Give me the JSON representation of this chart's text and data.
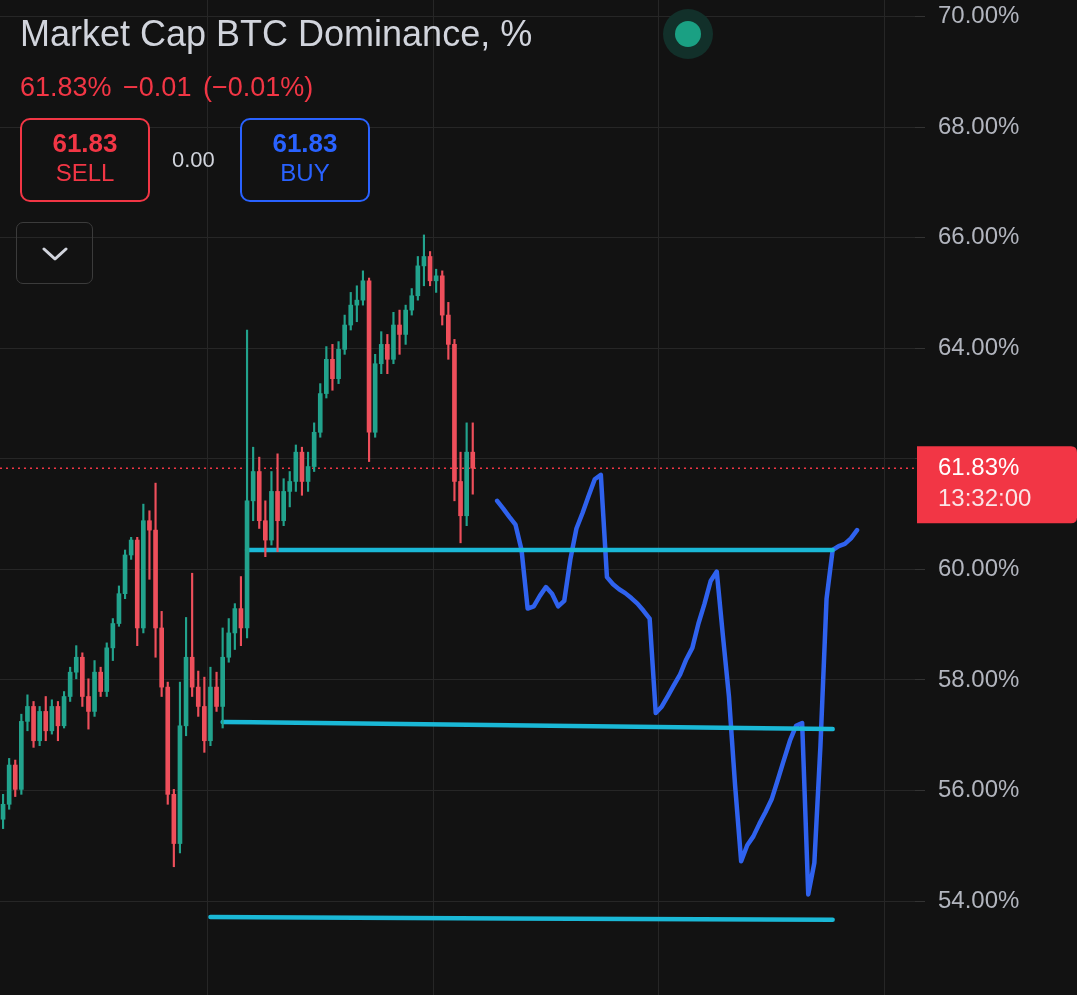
{
  "chart_data": {
    "type": "candlestick",
    "title": "Market Cap BTC Dominance, %",
    "subtitle": "61.83% −0.01 (−0.01%)",
    "categories": [
      null,
      null,
      null,
      null,
      null,
      null,
      null,
      null,
      null,
      null,
      null,
      null,
      null,
      null,
      null,
      null,
      null,
      null,
      null,
      null,
      null,
      null,
      null,
      null,
      null,
      null,
      null,
      null,
      null,
      null,
      null,
      null,
      null,
      null,
      null,
      null,
      null,
      null,
      null,
      null,
      null,
      null,
      null,
      null,
      null,
      null,
      null,
      null,
      null,
      null,
      null,
      null,
      null,
      null,
      null,
      null,
      null,
      null,
      null,
      null,
      null,
      null,
      null,
      null,
      null,
      null,
      null,
      null,
      null,
      null,
      null,
      null,
      null,
      null,
      null,
      null,
      null,
      null,
      null,
      null,
      null,
      null,
      null,
      null,
      null,
      null,
      null,
      null,
      null,
      null,
      null,
      null,
      null,
      null,
      null,
      null,
      null,
      null,
      null,
      null,
      null,
      null,
      null,
      null,
      null,
      null,
      null,
      null,
      null,
      null,
      null,
      null,
      null,
      null,
      null,
      null,
      null,
      null,
      null,
      null,
      null,
      null,
      null,
      null,
      null,
      null,
      null,
      null,
      null,
      null,
      null,
      null,
      null,
      null,
      null,
      null,
      null,
      null,
      null,
      null,
      null,
      null,
      null,
      null,
      null,
      null,
      null,
      null,
      null,
      null
    ],
    "series": [
      {
        "ohlc": [
          [
            55.48,
            55.93,
            55.31,
            55.75
          ],
          [
            55.75,
            56.58,
            55.66,
            56.46
          ],
          [
            56.46,
            56.55,
            55.89,
            56.02
          ],
          [
            56.02,
            57.38,
            55.93,
            57.25
          ],
          [
            57.25,
            57.73,
            57.08,
            57.52
          ],
          [
            57.52,
            57.61,
            56.78,
            56.9
          ],
          [
            56.9,
            57.52,
            56.81,
            57.43
          ],
          [
            57.43,
            57.7,
            56.9,
            57.08
          ],
          [
            57.08,
            57.64,
            57.02,
            57.52
          ],
          [
            57.52,
            57.61,
            56.9,
            57.17
          ],
          [
            57.17,
            57.79,
            57.13,
            57.7
          ],
          [
            57.7,
            58.23,
            57.61,
            58.14
          ],
          [
            58.14,
            58.62,
            58.02,
            58.41
          ],
          [
            58.41,
            58.49,
            57.52,
            57.7
          ],
          [
            57.7,
            58.02,
            57.11,
            57.43
          ],
          [
            57.43,
            58.35,
            57.34,
            58.14
          ],
          [
            58.14,
            58.23,
            57.7,
            57.79
          ],
          [
            57.79,
            58.67,
            57.7,
            58.58
          ],
          [
            58.58,
            59.11,
            58.35,
            59.02
          ],
          [
            59.02,
            59.7,
            58.97,
            59.56
          ],
          [
            59.56,
            60.35,
            59.47,
            60.26
          ],
          [
            60.26,
            60.58,
            60.18,
            60.53
          ],
          [
            60.53,
            60.58,
            58.62,
            58.94
          ],
          [
            58.94,
            61.18,
            58.85,
            60.88
          ],
          [
            60.88,
            61.06,
            59.82,
            60.71
          ],
          [
            60.71,
            61.56,
            58.41,
            58.94
          ],
          [
            58.94,
            59.24,
            57.7,
            57.87
          ],
          [
            57.87,
            57.96,
            55.75,
            55.93
          ],
          [
            55.93,
            56.02,
            54.62,
            55.04
          ],
          [
            55.04,
            57.96,
            54.87,
            57.17
          ],
          [
            57.17,
            59.13,
            56.99,
            58.41
          ],
          [
            58.41,
            59.93,
            57.7,
            57.87
          ],
          [
            57.87,
            58.16,
            57.34,
            57.52
          ],
          [
            57.52,
            58.05,
            56.69,
            56.9
          ],
          [
            56.9,
            58.23,
            56.81,
            57.87
          ],
          [
            57.87,
            58.14,
            57.43,
            57.52
          ],
          [
            57.52,
            58.94,
            57.13,
            58.41
          ],
          [
            58.41,
            59.11,
            58.32,
            58.85
          ],
          [
            58.85,
            59.38,
            58.55,
            59.29
          ],
          [
            59.29,
            59.87,
            58.62,
            58.94
          ],
          [
            58.94,
            64.33,
            58.76,
            61.24
          ],
          [
            61.24,
            62.21,
            60.88,
            61.77
          ],
          [
            61.77,
            62.03,
            60.74,
            60.88
          ],
          [
            60.88,
            61.24,
            60.23,
            60.53
          ],
          [
            60.53,
            61.77,
            60.44,
            61.41
          ],
          [
            61.41,
            62.09,
            60.32,
            60.88
          ],
          [
            60.88,
            61.64,
            60.79,
            61.41
          ],
          [
            61.41,
            61.77,
            61.13,
            61.59
          ],
          [
            61.59,
            62.25,
            61.41,
            62.12
          ],
          [
            62.12,
            62.21,
            61.34,
            61.59
          ],
          [
            61.59,
            62.12,
            61.41,
            61.86
          ],
          [
            61.86,
            62.65,
            61.77,
            62.48
          ],
          [
            62.48,
            63.36,
            62.39,
            63.18
          ],
          [
            63.18,
            64.03,
            63.1,
            63.8
          ],
          [
            63.8,
            64.07,
            63.24,
            63.45
          ],
          [
            63.45,
            64.12,
            63.36,
            63.98
          ],
          [
            63.98,
            64.6,
            63.89,
            64.42
          ],
          [
            64.42,
            65.01,
            64.33,
            64.78
          ],
          [
            64.78,
            65.13,
            64.48,
            64.87
          ],
          [
            64.87,
            65.4,
            64.78,
            65.22
          ],
          [
            65.22,
            65.27,
            61.95,
            62.48
          ],
          [
            62.48,
            63.89,
            62.39,
            63.72
          ],
          [
            63.72,
            64.3,
            63.54,
            64.07
          ],
          [
            64.07,
            64.25,
            63.54,
            63.8
          ],
          [
            63.8,
            64.65,
            63.72,
            64.42
          ],
          [
            64.42,
            64.69,
            63.89,
            64.25
          ],
          [
            64.25,
            64.78,
            64.07,
            64.69
          ],
          [
            64.69,
            65.08,
            64.6,
            64.95
          ],
          [
            64.95,
            65.66,
            64.87,
            65.49
          ],
          [
            65.49,
            66.05,
            65.13,
            65.66
          ],
          [
            65.66,
            65.75,
            65.13,
            65.22
          ],
          [
            65.22,
            65.43,
            65.01,
            65.31
          ],
          [
            65.31,
            65.4,
            64.42,
            64.6
          ],
          [
            64.6,
            64.83,
            63.8,
            64.07
          ],
          [
            64.07,
            64.16,
            61.24,
            61.59
          ],
          [
            61.59,
            62.12,
            60.48,
            60.97
          ],
          [
            60.97,
            62.65,
            60.79,
            62.12
          ],
          [
            62.12,
            62.65,
            61.36,
            61.83
          ],
          null,
          null,
          null,
          null,
          null,
          null,
          null,
          null,
          null,
          null,
          null,
          null,
          null,
          null,
          null,
          null,
          null,
          null,
          null,
          null,
          null,
          null,
          null,
          null,
          null,
          null,
          null,
          null,
          null,
          null,
          null,
          null,
          null,
          null,
          null,
          null,
          null,
          null,
          null,
          null,
          null,
          null,
          null,
          null,
          null,
          null,
          null,
          null,
          null,
          null,
          null,
          null,
          null,
          null,
          null,
          null,
          null,
          null,
          null,
          null,
          null,
          null,
          null,
          null,
          null,
          null,
          null,
          null,
          null,
          null,
          null,
          null
        ],
        "colors": [
          "#22a38d",
          "#22a38d",
          "#ee4f5b",
          "#22a38d",
          "#22a38d",
          "#ee4f5b",
          "#22a38d",
          "#ee4f5b",
          "#22a38d",
          "#ee4f5b",
          "#22a38d",
          "#22a38d",
          "#22a38d",
          "#ee4f5b",
          "#ee4f5b",
          "#22a38d",
          "#ee4f5b",
          "#22a38d",
          "#22a38d",
          "#22a38d",
          "#22a38d",
          "#22a38d",
          "#ee4f5b",
          "#22a38d",
          "#ee4f5b",
          "#ee4f5b",
          "#ee4f5b",
          "#ee4f5b",
          "#ee4f5b",
          "#22a38d",
          "#22a38d",
          "#ee4f5b",
          "#ee4f5b",
          "#ee4f5b",
          "#22a38d",
          "#ee4f5b",
          "#22a38d",
          "#22a38d",
          "#22a38d",
          "#ee4f5b",
          "#22a38d",
          "#22a38d",
          "#ee4f5b",
          "#ee4f5b",
          "#22a38d",
          "#ee4f5b",
          "#22a38d",
          "#22a38d",
          "#22a38d",
          "#ee4f5b",
          "#22a38d",
          "#22a38d",
          "#22a38d",
          "#22a38d",
          "#ee4f5b",
          "#22a38d",
          "#22a38d",
          "#22a38d",
          "#22a38d",
          "#22a38d",
          "#ee4f5b",
          "#22a38d",
          "#22a38d",
          "#ee4f5b",
          "#22a38d",
          "#ee4f5b",
          "#22a38d",
          "#22a38d",
          "#22a38d",
          "#22a38d",
          "#ee4f5b",
          "#22a38d",
          "#ee4f5b",
          "#ee4f5b",
          "#ee4f5b",
          "#ee4f5b",
          "#22a38d",
          "#ee4f5b",
          null,
          null,
          null,
          null,
          null,
          null,
          null,
          null,
          null,
          null,
          null,
          null,
          null,
          null,
          null,
          null,
          null,
          null,
          null,
          null,
          null,
          null,
          null,
          null,
          null,
          null,
          null,
          null,
          null,
          null,
          null,
          null,
          null,
          null,
          null,
          null,
          null,
          null,
          null,
          null,
          null,
          null,
          null,
          null,
          null,
          null,
          null,
          null,
          null,
          null,
          null,
          null,
          null,
          null,
          null,
          null,
          null,
          null,
          null,
          null,
          null,
          null,
          null,
          null,
          null,
          null,
          null,
          null,
          null,
          null,
          null,
          null
        ]
      },
      {
        "type": "line",
        "color": "#1ab8d6",
        "values": [
          null,
          null,
          null,
          null,
          null,
          null,
          null,
          null,
          null,
          null,
          null,
          null,
          null,
          null,
          null,
          null,
          null,
          null,
          null,
          null,
          null,
          null,
          null,
          null,
          null,
          null,
          null,
          null,
          null,
          null,
          null,
          null,
          null,
          null,
          null,
          null,
          null,
          null,
          null,
          null,
          60.35,
          null,
          null,
          null,
          null,
          null,
          null,
          null,
          null,
          null,
          null,
          null,
          null,
          null,
          null,
          null,
          null,
          null,
          null,
          null,
          null,
          null,
          null,
          null,
          null,
          null,
          null,
          null,
          null,
          null,
          null,
          null,
          null,
          null,
          null,
          null,
          null,
          null,
          null,
          null,
          null,
          null,
          null,
          null,
          null,
          null,
          null,
          null,
          null,
          null,
          null,
          null,
          null,
          null,
          null,
          null,
          null,
          null,
          null,
          null,
          null,
          null,
          null,
          null,
          null,
          null,
          null,
          null,
          null,
          null,
          null,
          null,
          null,
          null,
          null,
          null,
          null,
          null,
          null,
          null,
          null,
          null,
          null,
          null,
          null,
          null,
          null,
          null,
          null,
          null,
          null,
          null,
          null,
          null,
          null,
          null,
          60.35,
          null,
          null,
          null,
          null,
          null,
          null,
          null,
          null,
          null,
          null,
          null,
          null,
          null
        ]
      },
      {
        "type": "line",
        "color": "#1ab8d6",
        "values": [
          null,
          null,
          null,
          null,
          null,
          null,
          null,
          null,
          null,
          null,
          null,
          null,
          null,
          null,
          null,
          null,
          null,
          null,
          null,
          null,
          null,
          null,
          null,
          null,
          null,
          null,
          null,
          null,
          null,
          null,
          null,
          null,
          null,
          null,
          null,
          null,
          57.24,
          null,
          null,
          null,
          null,
          null,
          null,
          null,
          null,
          null,
          null,
          null,
          null,
          null,
          null,
          null,
          null,
          null,
          null,
          null,
          null,
          null,
          null,
          null,
          null,
          null,
          null,
          null,
          null,
          null,
          null,
          null,
          null,
          null,
          null,
          null,
          null,
          null,
          null,
          null,
          null,
          null,
          null,
          null,
          null,
          null,
          null,
          null,
          null,
          null,
          null,
          null,
          null,
          null,
          null,
          null,
          null,
          null,
          null,
          null,
          null,
          null,
          null,
          null,
          null,
          null,
          null,
          null,
          null,
          null,
          null,
          null,
          null,
          null,
          null,
          null,
          null,
          null,
          null,
          null,
          null,
          null,
          null,
          null,
          null,
          null,
          null,
          null,
          null,
          null,
          null,
          null,
          null,
          null,
          null,
          null,
          null,
          null,
          null,
          null,
          57.11,
          null,
          null,
          null,
          null,
          null,
          null,
          null,
          null,
          null,
          null,
          null,
          null,
          null
        ]
      },
      {
        "type": "line",
        "color": "#1ab8d6",
        "values": [
          null,
          null,
          null,
          null,
          null,
          null,
          null,
          null,
          null,
          null,
          null,
          null,
          null,
          null,
          null,
          null,
          null,
          null,
          null,
          null,
          null,
          null,
          null,
          null,
          null,
          null,
          null,
          null,
          null,
          null,
          null,
          null,
          null,
          null,
          53.71,
          null,
          null,
          null,
          null,
          null,
          null,
          null,
          null,
          null,
          null,
          null,
          null,
          null,
          null,
          null,
          null,
          null,
          null,
          null,
          null,
          null,
          null,
          null,
          null,
          null,
          null,
          null,
          null,
          null,
          null,
          null,
          null,
          null,
          null,
          null,
          null,
          null,
          null,
          null,
          null,
          null,
          null,
          null,
          null,
          null,
          null,
          null,
          null,
          null,
          null,
          null,
          null,
          null,
          null,
          null,
          null,
          null,
          null,
          null,
          null,
          null,
          null,
          null,
          null,
          null,
          null,
          null,
          null,
          null,
          null,
          null,
          null,
          null,
          null,
          null,
          null,
          null,
          null,
          null,
          null,
          null,
          null,
          null,
          null,
          null,
          null,
          null,
          null,
          null,
          null,
          null,
          null,
          null,
          null,
          null,
          null,
          null,
          null,
          null,
          null,
          null,
          53.66,
          null,
          null,
          null,
          null,
          null,
          null,
          null,
          null,
          null,
          null,
          null,
          null,
          null
        ]
      },
      {
        "type": "line",
        "color": "#2f62ee",
        "values": [
          null,
          null,
          null,
          null,
          null,
          null,
          null,
          null,
          null,
          null,
          null,
          null,
          null,
          null,
          null,
          null,
          null,
          null,
          null,
          null,
          null,
          null,
          null,
          null,
          null,
          null,
          null,
          null,
          null,
          null,
          null,
          null,
          null,
          null,
          null,
          null,
          null,
          null,
          null,
          null,
          null,
          null,
          null,
          null,
          null,
          null,
          null,
          null,
          null,
          null,
          null,
          null,
          null,
          null,
          null,
          null,
          null,
          null,
          null,
          null,
          null,
          null,
          null,
          null,
          null,
          null,
          null,
          null,
          null,
          null,
          null,
          null,
          null,
          null,
          null,
          null,
          null,
          null,
          null,
          null,
          null,
          61.24,
          61.1,
          60.95,
          60.81,
          60.35,
          59.29,
          59.33,
          59.52,
          59.68,
          59.56,
          59.33,
          59.43,
          60.18,
          60.74,
          61.02,
          61.33,
          61.63,
          61.71,
          59.86,
          59.73,
          59.64,
          59.57,
          59.48,
          59.38,
          59.25,
          59.11,
          57.4,
          57.52,
          57.71,
          57.91,
          58.1,
          58.37,
          58.58,
          59.02,
          59.38,
          59.79,
          59.96,
          58.81,
          57.7,
          56.1,
          54.72,
          55.01,
          55.17,
          55.4,
          55.61,
          55.84,
          56.19,
          56.55,
          56.9,
          57.17,
          57.22,
          54.12,
          54.69,
          56.81,
          59.47,
          60.35,
          60.42,
          60.46,
          60.56,
          60.71,
          null,
          null,
          null,
          null,
          null,
          null,
          null,
          null,
          null
        ]
      }
    ],
    "ylim": [
      52.3,
      70.3
    ],
    "yticks": [
      {
        "value": 54,
        "label": "54.00%"
      },
      {
        "value": 56,
        "label": "56.00%"
      },
      {
        "value": 58,
        "label": "58.00%"
      },
      {
        "value": 60,
        "label": "60.00%"
      },
      {
        "value": 62,
        "label": null
      },
      {
        "value": 64,
        "label": "64.00%"
      },
      {
        "value": 66,
        "label": "66.00%"
      },
      {
        "value": 68,
        "label": "68.00%"
      },
      {
        "value": 70,
        "label": "70.00%"
      }
    ],
    "grid": true,
    "tick_labels": "y",
    "ref_lines": [
      {
        "axis": "y",
        "value": 61.83,
        "label": "61.83%",
        "color": "#f23645",
        "line_style": "dotted"
      }
    ],
    "annotations": [
      "61.83",
      "SELL",
      "0.00",
      "61.83",
      "BUY",
      "13:32:00"
    ]
  }
}
